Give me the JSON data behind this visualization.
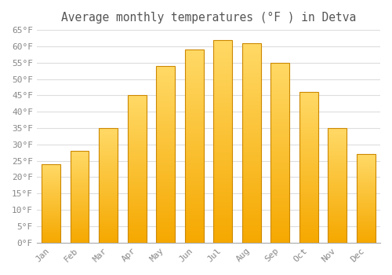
{
  "title": "Average monthly temperatures (°F ) in Detva",
  "months": [
    "Jan",
    "Feb",
    "Mar",
    "Apr",
    "May",
    "Jun",
    "Jul",
    "Aug",
    "Sep",
    "Oct",
    "Nov",
    "Dec"
  ],
  "values": [
    24,
    28,
    35,
    45,
    54,
    59,
    62,
    61,
    55,
    46,
    35,
    27
  ],
  "bar_color_bottom": "#F5A800",
  "bar_color_top": "#FFD966",
  "bar_edge_color": "#CC8800",
  "ylim": [
    0,
    65
  ],
  "yticks": [
    0,
    5,
    10,
    15,
    20,
    25,
    30,
    35,
    40,
    45,
    50,
    55,
    60,
    65
  ],
  "grid_color": "#dddddd",
  "background_color": "#ffffff",
  "plot_bg_color": "#ffffff",
  "title_fontsize": 10.5,
  "tick_fontsize": 8,
  "font_color": "#888888",
  "title_color": "#555555"
}
